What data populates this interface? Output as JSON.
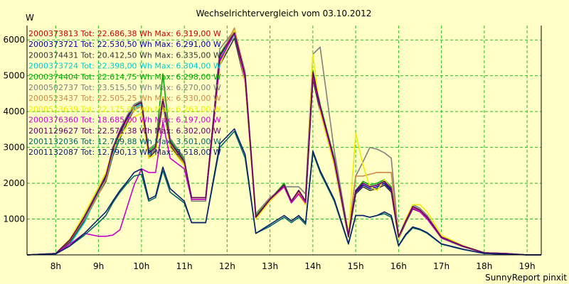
{
  "chart_data": {
    "type": "line",
    "title": "Wechselrichtervergleich vom 03.10.2012",
    "ylabel": "W",
    "footer": "SunnyReport pinxit",
    "ylim": [
      0,
      6400
    ],
    "xlim": [
      7.33,
      19.33
    ],
    "grid": true,
    "legend_position": "top-left",
    "yticks": [
      1000,
      2000,
      3000,
      4000,
      5000,
      6000
    ],
    "xticks": [
      {
        "value": 8,
        "label": "8h"
      },
      {
        "value": 9,
        "label": "9h"
      },
      {
        "value": 10,
        "label": "10h"
      },
      {
        "value": 11,
        "label": "11h"
      },
      {
        "value": 12,
        "label": "12h"
      },
      {
        "value": 13,
        "label": "13h"
      },
      {
        "value": 14,
        "label": "14h"
      },
      {
        "value": 15,
        "label": "15h"
      },
      {
        "value": 16,
        "label": "16h"
      },
      {
        "value": 17,
        "label": "17h"
      },
      {
        "value": 18,
        "label": "18h"
      },
      {
        "value": 19,
        "label": "19h"
      }
    ],
    "x": [
      7.33,
      8.0,
      8.33,
      8.67,
      9.0,
      9.17,
      9.33,
      9.5,
      9.67,
      9.83,
      10.0,
      10.17,
      10.33,
      10.5,
      10.67,
      11.0,
      11.17,
      11.5,
      11.83,
      12.17,
      12.42,
      12.67,
      13.0,
      13.33,
      13.5,
      13.67,
      13.83,
      14.0,
      14.17,
      14.5,
      14.83,
      15.0,
      15.17,
      15.33,
      15.5,
      15.67,
      15.83,
      16.0,
      16.17,
      16.33,
      16.5,
      16.67,
      17.0,
      17.5,
      18.0,
      18.5,
      19.0,
      19.33
    ],
    "series": [
      {
        "name": "2000373813 Tot: 22.686,38 Wh Max: 6.319,00 W",
        "color": "#cc0000",
        "values": [
          0,
          40,
          420,
          1050,
          1800,
          2200,
          2950,
          3450,
          3850,
          4150,
          4250,
          2800,
          3000,
          4350,
          3150,
          2600,
          1600,
          1600,
          5550,
          6200,
          5000,
          1050,
          1550,
          1950,
          1500,
          1800,
          1500,
          5100,
          4150,
          2650,
          550,
          1800,
          2000,
          1900,
          1950,
          2050,
          1850,
          500,
          950,
          1350,
          1250,
          1050,
          500,
          250,
          60,
          40,
          0,
          0
        ]
      },
      {
        "name": "2000373721 Tot: 22.530,50 Wh Max: 6.291,00 W",
        "color": "#0000aa",
        "values": [
          0,
          40,
          400,
          1000,
          1800,
          2150,
          2900,
          3400,
          3800,
          4100,
          4200,
          2750,
          2950,
          4300,
          3100,
          2550,
          1600,
          1600,
          5450,
          6150,
          4950,
          1050,
          1550,
          1950,
          1500,
          1750,
          1450,
          5050,
          4100,
          2600,
          550,
          1750,
          1950,
          1850,
          1900,
          2000,
          1800,
          480,
          930,
          1320,
          1230,
          1030,
          490,
          240,
          60,
          40,
          0,
          0
        ]
      },
      {
        "name": "2000374431 Tot: 20.412,50 Wh Max: 6.335,00 W",
        "color": "#333333",
        "values": [
          0,
          40,
          350,
          950,
          1700,
          2050,
          2750,
          3250,
          3700,
          4050,
          4150,
          2700,
          2900,
          4200,
          3050,
          2500,
          1550,
          1550,
          5300,
          6050,
          4800,
          1050,
          1500,
          1900,
          1450,
          1700,
          1400,
          4900,
          4000,
          2500,
          500,
          1700,
          1900,
          1800,
          1850,
          1950,
          1750,
          450,
          900,
          1280,
          1200,
          1000,
          470,
          230,
          55,
          35,
          0,
          0
        ]
      },
      {
        "name": "2000373724 Tot: 22.398,00 Wh Max: 6.304,00 W",
        "color": "#00cccc",
        "values": [
          0,
          40,
          300,
          900,
          1750,
          2100,
          2800,
          3300,
          3750,
          4100,
          4200,
          2800,
          3000,
          4300,
          3150,
          2550,
          1600,
          1600,
          5500,
          6150,
          5000,
          1050,
          1550,
          1950,
          1500,
          1750,
          1450,
          5050,
          4100,
          2600,
          550,
          1800,
          2000,
          1900,
          1950,
          2050,
          1850,
          500,
          950,
          1350,
          1250,
          1050,
          500,
          250,
          60,
          40,
          0,
          0
        ]
      },
      {
        "name": "2000374404 Tot: 22.614,75 Wh Max: 6.298,00 W",
        "color": "#00aa00",
        "values": [
          0,
          40,
          420,
          1050,
          1800,
          2200,
          2950,
          3450,
          3850,
          4150,
          4300,
          2900,
          3050,
          5050,
          3200,
          2650,
          1600,
          1600,
          5600,
          6250,
          5050,
          1100,
          1550,
          2000,
          1500,
          1800,
          1500,
          5150,
          4200,
          2700,
          550,
          1800,
          2050,
          1950,
          2000,
          2100,
          1900,
          500,
          950,
          1350,
          1250,
          1050,
          500,
          250,
          60,
          40,
          0,
          0
        ]
      },
      {
        "name": "2000502737 Tot: 23.515,50 Wh Max: 6.270,00 W",
        "color": "#808080",
        "values": [
          0,
          40,
          420,
          1100,
          1850,
          2250,
          3000,
          3500,
          3900,
          4200,
          4300,
          2950,
          3100,
          4400,
          3250,
          2700,
          1500,
          1500,
          5750,
          6270,
          5100,
          1150,
          1600,
          1900,
          1900,
          1900,
          1700,
          5600,
          5800,
          2900,
          600,
          2200,
          2600,
          3000,
          2950,
          2850,
          2700,
          500,
          1000,
          1400,
          1300,
          1100,
          500,
          250,
          60,
          40,
          0,
          0
        ]
      },
      {
        "name": "2000523437 Tot: 22.505,25 Wh Max: 6.330,00 W",
        "color": "#cc8844",
        "values": [
          0,
          40,
          400,
          1000,
          1700,
          2100,
          2850,
          3350,
          3750,
          4050,
          4150,
          2750,
          2950,
          4250,
          3100,
          2550,
          1600,
          1600,
          5500,
          6330,
          5000,
          1050,
          1550,
          1950,
          1500,
          1750,
          1450,
          5100,
          4150,
          2650,
          550,
          2200,
          2200,
          2250,
          2300,
          2300,
          2300,
          480,
          930,
          1330,
          1240,
          1040,
          490,
          240,
          60,
          40,
          0,
          0
        ]
      },
      {
        "name": "2000523639 Tot: 22.175,00 Wh Max: 6.263,00 W",
        "color": "#eeee00",
        "values": [
          0,
          40,
          450,
          1150,
          1900,
          2300,
          2950,
          3300,
          3600,
          3850,
          3950,
          2700,
          2800,
          4400,
          3000,
          2500,
          1600,
          1600,
          5300,
          6263,
          4800,
          1000,
          1500,
          1900,
          1450,
          1700,
          1400,
          5600,
          4000,
          2500,
          550,
          3400,
          2500,
          1900,
          1800,
          2100,
          1850,
          450,
          1000,
          1400,
          1400,
          1200,
          550,
          260,
          60,
          40,
          0,
          0
        ]
      },
      {
        "name": "2000376360 Tot: 18.685,00 Wh Max: 6.197,00 W",
        "color": "#cc00cc",
        "values": [
          0,
          40,
          300,
          600,
          520,
          520,
          550,
          700,
          1350,
          1950,
          2400,
          2300,
          2300,
          3700,
          2700,
          2400,
          1550,
          1550,
          5400,
          6197,
          4900,
          1050,
          1550,
          1900,
          1450,
          1700,
          1450,
          5000,
          4100,
          2600,
          550,
          1800,
          2000,
          1900,
          1950,
          2050,
          1850,
          500,
          950,
          1300,
          1200,
          1000,
          480,
          240,
          60,
          40,
          0,
          0
        ]
      },
      {
        "name": "2001129627 Tot: 22.571,38 Wh Max: 6.302,00 W",
        "color": "#660066",
        "values": [
          0,
          40,
          420,
          1050,
          1800,
          2200,
          2950,
          3450,
          3850,
          4150,
          4250,
          2850,
          3000,
          4350,
          3150,
          2600,
          1600,
          1600,
          5550,
          6200,
          5000,
          1050,
          1550,
          1950,
          1500,
          1800,
          1500,
          5100,
          4150,
          2650,
          550,
          1800,
          2000,
          1900,
          1950,
          2050,
          1850,
          500,
          950,
          1350,
          1250,
          1050,
          500,
          250,
          60,
          40,
          0,
          0
        ]
      },
      {
        "name": "2001132036 Tot: 12.729,88 Wh Max: 3.501,00 W",
        "color": "#006666",
        "values": [
          0,
          30,
          250,
          550,
          900,
          1100,
          1450,
          1750,
          2000,
          2200,
          2250,
          1500,
          1600,
          2350,
          1750,
          1450,
          900,
          900,
          3000,
          3450,
          2700,
          600,
          800,
          1050,
          900,
          1050,
          850,
          2850,
          2300,
          1500,
          300,
          1100,
          1100,
          1050,
          1100,
          1150,
          1050,
          250,
          550,
          750,
          700,
          600,
          300,
          150,
          40,
          20,
          0,
          0
        ]
      },
      {
        "name": "2001132087 Tot: 12.790,13 Wh Max: 3.518,00 W",
        "color": "#0a1e6e",
        "values": [
          0,
          30,
          250,
          600,
          1000,
          1200,
          1500,
          1800,
          2050,
          2300,
          2400,
          1550,
          1650,
          2450,
          1850,
          1500,
          900,
          900,
          3100,
          3518,
          2800,
          600,
          850,
          1100,
          950,
          1100,
          900,
          2900,
          2350,
          1550,
          320,
          1100,
          1100,
          1050,
          1100,
          1200,
          1100,
          260,
          580,
          780,
          720,
          620,
          310,
          160,
          40,
          20,
          0,
          0
        ]
      }
    ]
  }
}
